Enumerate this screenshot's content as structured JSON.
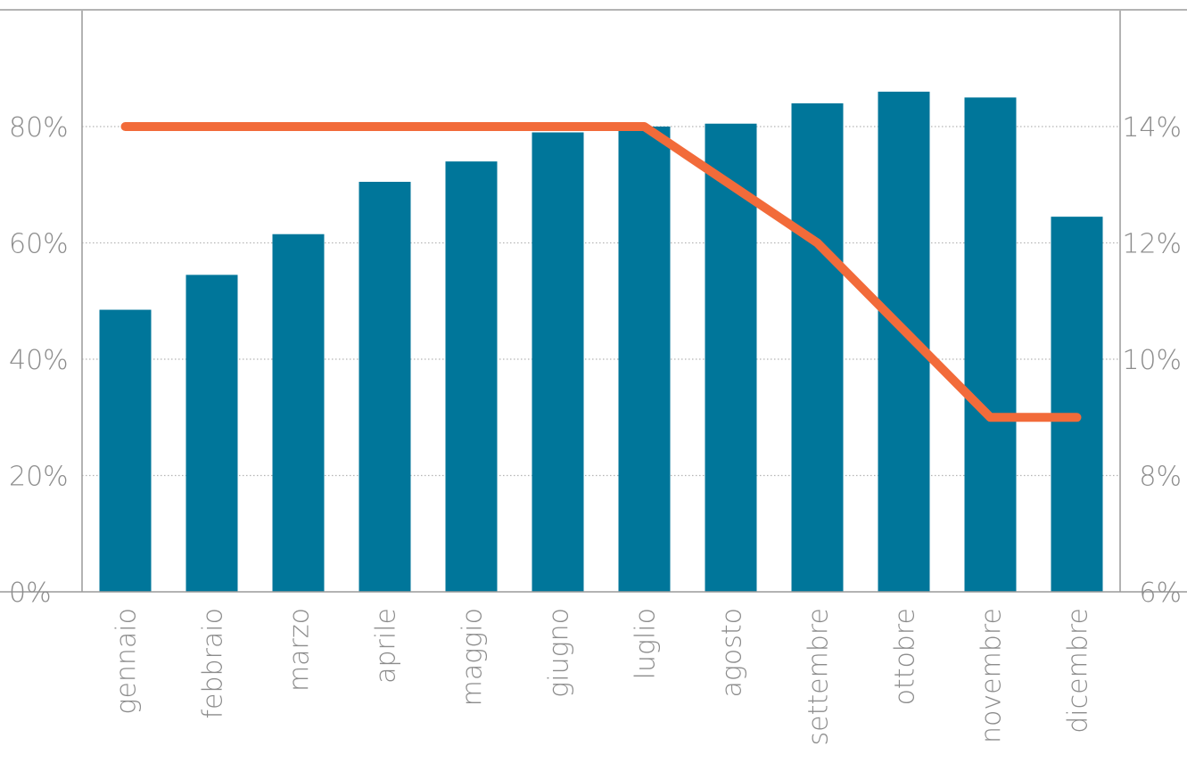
{
  "chart_data": {
    "type": "bar",
    "title": "",
    "xlabel": "",
    "ylabel": "",
    "categories": [
      "gennaio",
      "febbraio",
      "marzo",
      "aprile",
      "maggio",
      "giugno",
      "luglio",
      "agosto",
      "settembre",
      "ottobre",
      "novembre",
      "dicembre"
    ],
    "ylim": [
      0,
      100
    ],
    "y2lim": [
      6,
      16
    ],
    "yticks": [
      "0%",
      "20%",
      "40%",
      "60%",
      "80%"
    ],
    "y2ticks": [
      "6%",
      "8%",
      "10%",
      "12%",
      "14%"
    ],
    "grid": true,
    "series": [
      {
        "type": "bar",
        "axis": "left",
        "color": "#00769a",
        "values": [
          48.5,
          54.5,
          61.5,
          70.5,
          74,
          79,
          80,
          80.5,
          84,
          86,
          85,
          64.5
        ]
      },
      {
        "type": "line",
        "axis": "right",
        "color": "#f26b3a",
        "values": [
          14,
          14,
          14,
          14,
          14,
          14,
          14,
          13,
          12,
          10.5,
          9,
          9
        ]
      }
    ]
  }
}
